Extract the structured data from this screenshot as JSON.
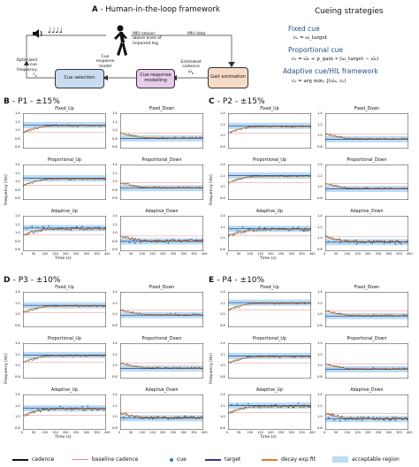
{
  "panelA": {
    "label": "A",
    "title": "- Human-in-the-loop framework",
    "music_notes": "♩♩♩♩",
    "imu_sensor": "IMU sensor",
    "imu_sensor2": "above knee of",
    "imu_sensor3": "impaired leg",
    "imu_data": "IMU data",
    "optimized1": "Optimized",
    "optimized2": "cue",
    "optimized3": "frequency",
    "ck": "c",
    "ck_sub": "k",
    "cue_response1": "Cue",
    "cue_response2": "response",
    "cue_response3": "model",
    "estimated1": "Estimated",
    "estimated2": "cadence",
    "omega_hat": "ω̂",
    "omega_sub": "k",
    "cue_selection": "Cue selection",
    "cue_modelling": "Cue-response modelling",
    "gait_estimation": "Gait estimation",
    "colors": {
      "cue_box": "#c9dcf2",
      "model_box": "#e6cdea",
      "gait_box": "#f6dcc6"
    }
  },
  "strategies": {
    "title": "Cueing strategies",
    "fixed_label": "Fixed cue",
    "fixed_eq": "cₖ = ω_target",
    "proportional_label": "Proportional cue",
    "proportional_eq": "cₖ = ω̂ₖ + p_gain ∗ (ω_target − ω̂ₖ)",
    "adaptive_label": "Adaptive cue/HIL framework",
    "adaptive_eq": "cₖ = arg minₓ J(ω̂ₖ, cₖ)",
    "color": "#1f4e8c"
  },
  "panels": [
    {
      "id": "B",
      "title": "- P1 - ±15%",
      "x": 14,
      "y": 110
    },
    {
      "id": "C",
      "title": "- P2 - ±15%",
      "x": 246,
      "y": 110
    },
    {
      "id": "D",
      "title": "- P3 - ±10%",
      "x": 14,
      "y": 312
    },
    {
      "id": "E",
      "title": "- P4 - ±10%",
      "x": 246,
      "y": 312
    }
  ],
  "subplot_titles": [
    "Fixed_Up",
    "Fixed_Down",
    "Proportional_Up",
    "Proportional_Down",
    "Adaptive_Up",
    "Adaptive_Down"
  ],
  "axis": {
    "ylabel": "Frequency [Hz]",
    "xlabel": "Time (s)",
    "yticks_B": [
      "1.4",
      "1.2",
      "1.0",
      "0.8",
      "0.6"
    ],
    "yticks_C": [
      "1.4",
      "1.2",
      "1.0",
      "0.8"
    ],
    "yticks_DE": [
      "1.4",
      "1.2",
      "1.0",
      "0.8"
    ],
    "xticks": [
      "0",
      "50",
      "100",
      "150",
      "200",
      "250",
      "300",
      "350",
      "400"
    ]
  },
  "legend": {
    "cadence": "cadence",
    "baseline": "baseline cadence",
    "cue": "cue",
    "target": "target",
    "decay": "decay exp fit",
    "acceptable": "acceptable region",
    "colors": {
      "cadence": "#111111",
      "baseline": "#e88a8a",
      "cue": "#2a7ab8",
      "target": "#2b3a8f",
      "decay": "#e07a2a",
      "acceptable": "#b9dcf3"
    }
  }
}
